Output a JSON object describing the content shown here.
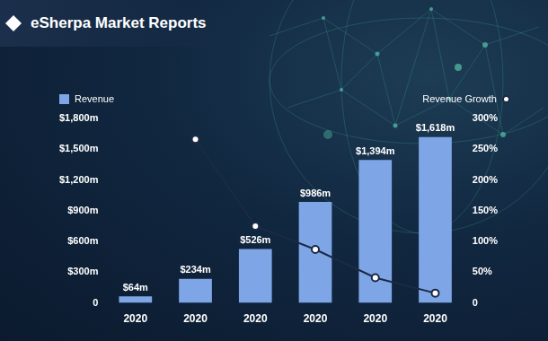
{
  "chart_data": {
    "type": "bar",
    "title": "eSherpa Market Reports",
    "categories": [
      "2020",
      "2020",
      "2020",
      "2020",
      "2020",
      "2020"
    ],
    "series": [
      {
        "name": "Revenue",
        "type": "bar",
        "color": "#7ea6e6",
        "values": [
          64,
          234,
          526,
          986,
          1394,
          1618
        ],
        "value_labels": [
          "$64m",
          "$234m",
          "$526m",
          "$986m",
          "$1,394m",
          "$1,618m"
        ],
        "data_labels": true
      },
      {
        "name": "Revenue Growth",
        "type": "line",
        "color": "#1b2a45",
        "marker": "circle",
        "line_style": "solid",
        "axis": "y2",
        "values": [
          null,
          266,
          125,
          87,
          41,
          16
        ]
      }
    ],
    "ylim": [
      0,
      1800
    ],
    "yticks": [
      0,
      {
        "value": 300,
        "label": "$300m"
      },
      {
        "value": 600,
        "label": "$600m"
      },
      {
        "value": 900,
        "label": "$900m"
      },
      {
        "value": 1200,
        "label": "$1,200m"
      },
      {
        "value": 1500,
        "label": "$1,500m"
      },
      {
        "value": 1800,
        "label": "$1,800m"
      }
    ],
    "y2lim": [
      0,
      300
    ],
    "y2ticks": [
      0,
      {
        "value": 50,
        "label": "50%"
      },
      {
        "value": 100,
        "label": "100%"
      },
      {
        "value": 150,
        "label": "150%"
      },
      {
        "value": 200,
        "label": "200%"
      },
      {
        "value": 250,
        "label": "250%"
      },
      {
        "value": 300,
        "label": "300%"
      }
    ],
    "grid": false,
    "legend": "top"
  }
}
